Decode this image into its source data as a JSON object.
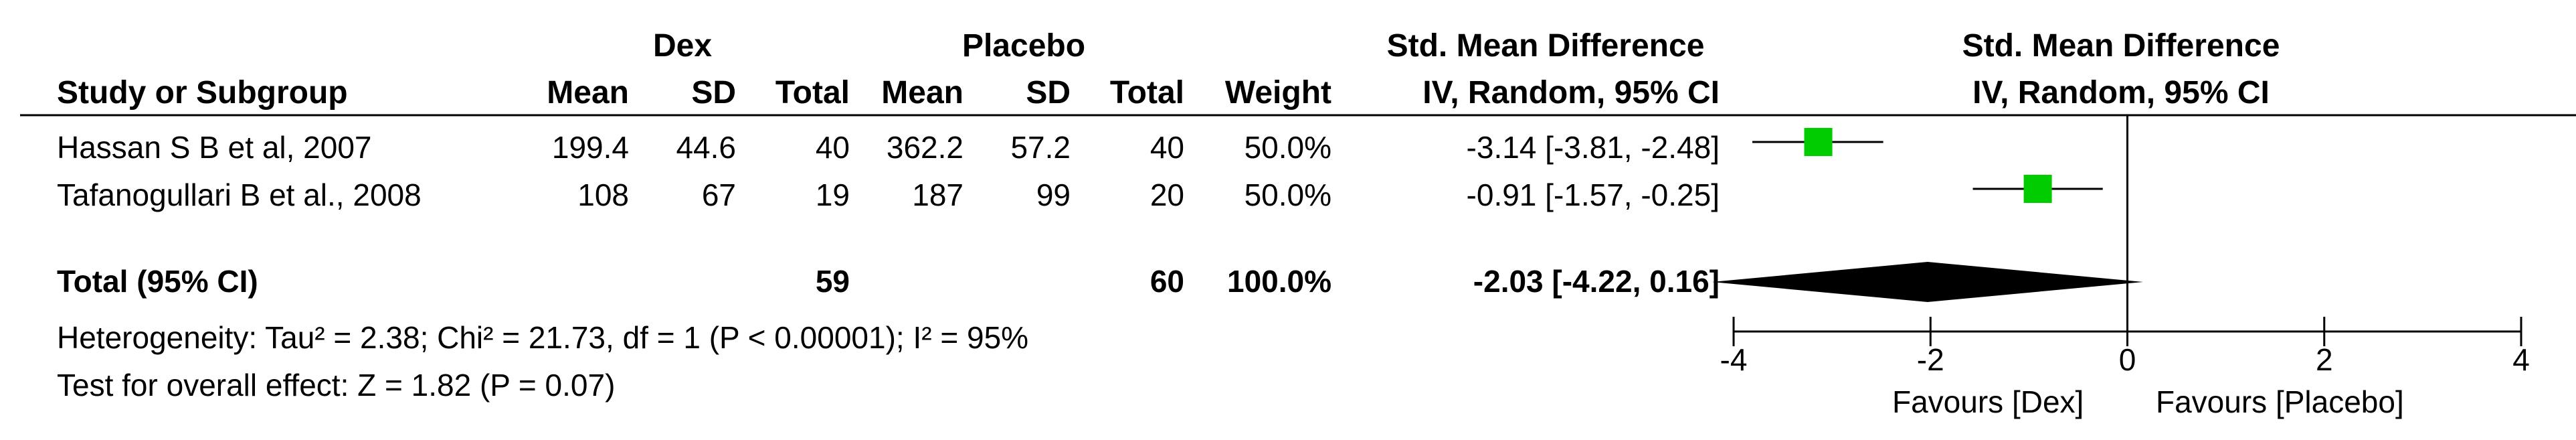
{
  "table": {
    "group_headers": {
      "experimental": "Dex",
      "control": "Placebo",
      "effect": "Std. Mean Difference",
      "plot": "Std. Mean Difference"
    },
    "columns": {
      "study": "Study or Subgroup",
      "mean_e": "Mean",
      "sd_e": "SD",
      "total_e": "Total",
      "mean_c": "Mean",
      "sd_c": "SD",
      "total_c": "Total",
      "weight": "Weight",
      "method": "IV, Random, 95% CI",
      "plot_method": "IV, Random, 95% CI"
    },
    "studies": [
      {
        "name": "Hassan S B et al, 2007",
        "mean_e": "199.4",
        "sd_e": "44.6",
        "total_e": "40",
        "mean_c": "362.2",
        "sd_c": "57.2",
        "total_c": "40",
        "weight": "50.0%",
        "ci": "-3.14 [-3.81, -2.48]"
      },
      {
        "name": "Tafanogullari B et al., 2008",
        "mean_e": "108",
        "sd_e": "67",
        "total_e": "19",
        "mean_c": "187",
        "sd_c": "99",
        "total_c": "20",
        "weight": "50.0%",
        "ci": "-0.91 [-1.57, -0.25]"
      }
    ],
    "total": {
      "label": "Total (95% CI)",
      "total_e": "59",
      "total_c": "60",
      "weight": "100.0%",
      "ci": "-2.03 [-4.22, 0.16]"
    },
    "heterogeneity": "Heterogeneity: Tau² = 2.38; Chi² = 21.73, df = 1 (P < 0.00001); I² = 95%",
    "overall_effect": "Test for overall effect: Z = 1.82 (P = 0.07)"
  },
  "colors": {
    "marker": "#00cc00",
    "diamond": "#000000",
    "line": "#000000"
  },
  "chart_data": {
    "type": "forest",
    "x_ticks": [
      -4,
      -2,
      0,
      2,
      4
    ],
    "tick_labels": [
      "-4",
      "-2",
      "0",
      "2",
      "4"
    ],
    "xlim": [
      -4,
      4
    ],
    "favours_left": "Favours [Dex]",
    "favours_right": "Favours [Placebo]",
    "studies": [
      {
        "estimate": -3.14,
        "lower": -3.81,
        "upper": -2.48,
        "weight": 50.0
      },
      {
        "estimate": -0.91,
        "lower": -1.57,
        "upper": -0.25,
        "weight": 50.0
      }
    ],
    "pooled": {
      "estimate": -2.03,
      "lower": -4.22,
      "upper": 0.16
    }
  }
}
